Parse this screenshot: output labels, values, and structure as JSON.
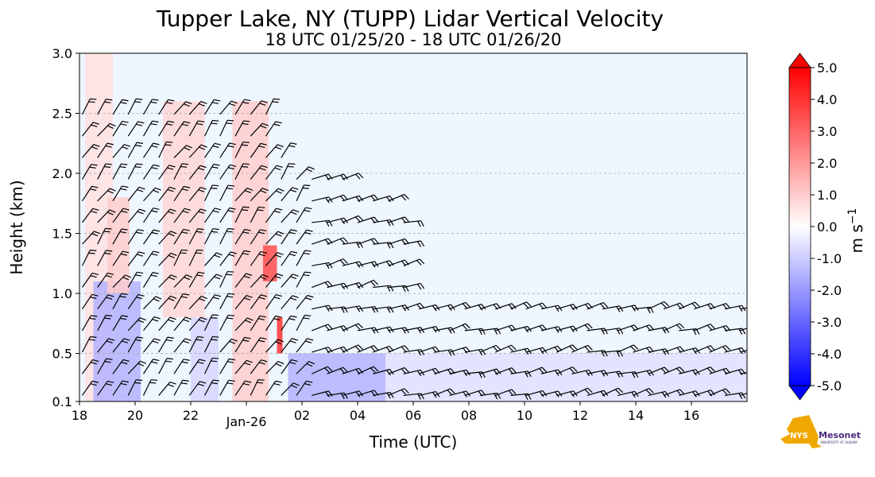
{
  "chart_data": {
    "type": "heatmap",
    "title": "Tupper Lake, NY (TUPP) Lidar Vertical Velocity",
    "subtitle": "18 UTC 01/25/20 - 18 UTC 01/26/20",
    "xlabel": "Time (UTC)",
    "ylabel": "Height (km)",
    "x_range_hours": [
      0,
      24
    ],
    "x_ticks": [
      {
        "h": 0,
        "label": "18"
      },
      {
        "h": 2,
        "label": "20"
      },
      {
        "h": 4,
        "label": "22"
      },
      {
        "h": 6,
        "label": "Jan-26"
      },
      {
        "h": 8,
        "label": "02"
      },
      {
        "h": 10,
        "label": "04"
      },
      {
        "h": 12,
        "label": "06"
      },
      {
        "h": 14,
        "label": "08"
      },
      {
        "h": 16,
        "label": "10"
      },
      {
        "h": 18,
        "label": "12"
      },
      {
        "h": 20,
        "label": "14"
      },
      {
        "h": 22,
        "label": "16"
      }
    ],
    "ylim": [
      0.1,
      3.0
    ],
    "y_ticks": [
      "0.1",
      "0.5",
      "1.0",
      "1.5",
      "2.0",
      "2.5",
      "3.0"
    ],
    "grid": "horizontal dashed",
    "colorbar": {
      "label": "m s",
      "label_sup": "−1",
      "range": [
        -5.0,
        5.0
      ],
      "ticks": [
        "5.0",
        "4.0",
        "3.0",
        "2.0",
        "1.0",
        "0.0",
        "-1.0",
        "-2.0",
        "-3.0",
        "-4.0",
        "-5.0"
      ],
      "colors": {
        "min": "#0000ff",
        "mid": "#ffffff",
        "max": "#ff0000",
        "background": "#eef6ff"
      }
    },
    "features": [
      {
        "h": [
          0.2,
          1.2
        ],
        "km": [
          0.1,
          3.0
        ],
        "w": 0.6
      },
      {
        "h": [
          0.5,
          2.2
        ],
        "km": [
          0.1,
          1.1
        ],
        "w": -1.5
      },
      {
        "h": [
          1.0,
          1.8
        ],
        "km": [
          1.0,
          1.8
        ],
        "w": 1.0
      },
      {
        "h": [
          3.0,
          4.5
        ],
        "km": [
          0.8,
          2.6
        ],
        "w": 0.8
      },
      {
        "h": [
          4.0,
          5.0
        ],
        "km": [
          0.1,
          0.8
        ],
        "w": -0.8
      },
      {
        "h": [
          5.5,
          6.8
        ],
        "km": [
          0.1,
          2.6
        ],
        "w": 1.0
      },
      {
        "h": [
          6.6,
          7.1
        ],
        "km": [
          1.1,
          1.4
        ],
        "w": 3.5
      },
      {
        "h": [
          7.1,
          7.3
        ],
        "km": [
          0.5,
          0.8
        ],
        "w": 4.0
      },
      {
        "h": [
          7.5,
          11.0
        ],
        "km": [
          0.1,
          0.5
        ],
        "w": -1.5
      },
      {
        "h": [
          11.0,
          24.0
        ],
        "km": [
          0.1,
          0.5
        ],
        "w": -0.6
      }
    ]
  },
  "logo": {
    "text1": "NYS",
    "text2": "Mesonet",
    "text3": "UNIVERSITY AT ALBANY"
  }
}
